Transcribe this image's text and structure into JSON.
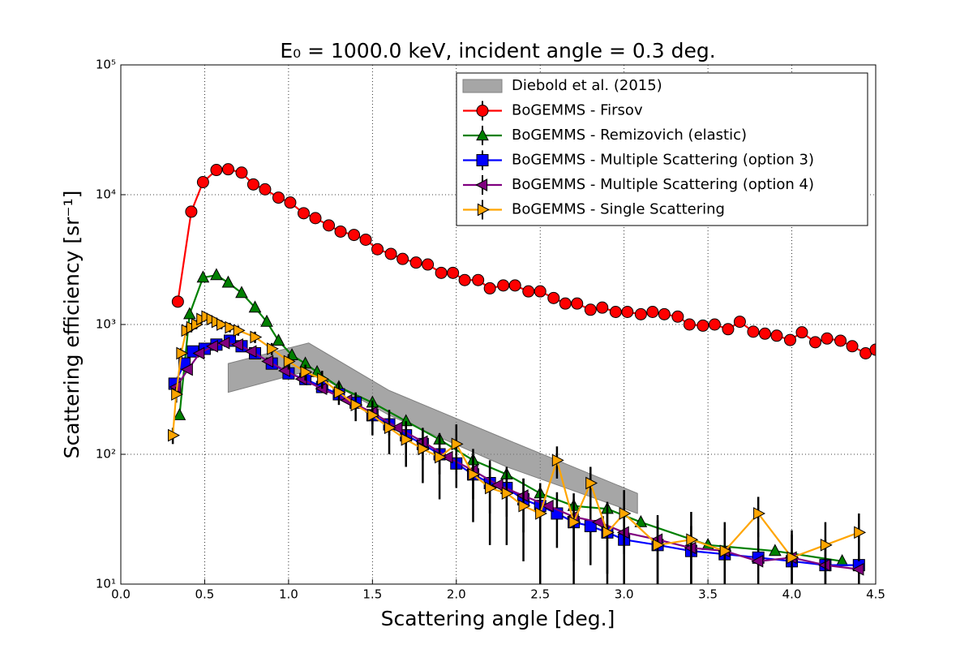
{
  "chart_data": {
    "type": "line",
    "title": "E₀ = 1000.0 keV, incident angle = 0.3 deg.",
    "xlabel": "Scattering angle [deg.]",
    "ylabel": "Scattering efficiency [sr⁻¹]",
    "xlim": [
      0,
      4.5
    ],
    "ylim": [
      10,
      100000
    ],
    "log_y": true,
    "grid": true,
    "legend": "upper right",
    "xticks": [
      {
        "value": 0,
        "label": "0.0"
      },
      0.5,
      {
        "value": 1,
        "label": "1.0"
      },
      1.5,
      {
        "value": 2,
        "label": "2.0"
      },
      2.5,
      {
        "value": 3,
        "label": "3.0"
      },
      3.5,
      {
        "value": 4,
        "label": "4.0"
      },
      4.5
    ],
    "yticks": [
      {
        "value": 10,
        "label": "10¹"
      },
      {
        "value": 100,
        "label": "10²"
      },
      {
        "value": 1000,
        "label": "10³"
      },
      {
        "value": 10000,
        "label": "10⁴"
      },
      {
        "value": 100000,
        "label": "10⁵"
      }
    ],
    "band": {
      "name": "Diebold et al. (2015)",
      "color": "#808080",
      "x": [
        0.64,
        1.12,
        1.6,
        2.3,
        3.08
      ],
      "upper": [
        500,
        720,
        310,
        130,
        50
      ],
      "lower": [
        300,
        440,
        200,
        80,
        35
      ]
    },
    "series": [
      {
        "name": "BoGEMMS - Firsov",
        "color": "#ff0000",
        "marker": "circle",
        "x": [
          0.34,
          0.42,
          0.49,
          0.57,
          0.64,
          0.72,
          0.79,
          0.86,
          0.94,
          1.01,
          1.09,
          1.16,
          1.24,
          1.31,
          1.39,
          1.46,
          1.53,
          1.61,
          1.68,
          1.76,
          1.83,
          1.91,
          1.98,
          2.05,
          2.13,
          2.2,
          2.28,
          2.35,
          2.43,
          2.5,
          2.58,
          2.65,
          2.72,
          2.8,
          2.87,
          2.95,
          3.02,
          3.1,
          3.17,
          3.24,
          3.32,
          3.39,
          3.47,
          3.54,
          3.62,
          3.69,
          3.77,
          3.84,
          3.91,
          3.99,
          4.06,
          4.14,
          4.21,
          4.29,
          4.36,
          4.44,
          4.5
        ],
        "values": [
          1500,
          7400,
          12500,
          15500,
          15700,
          14800,
          12000,
          11000,
          9500,
          8700,
          7200,
          6600,
          5800,
          5200,
          4900,
          4500,
          3800,
          3500,
          3200,
          3000,
          2900,
          2500,
          2500,
          2200,
          2200,
          1900,
          2000,
          2000,
          1800,
          1800,
          1600,
          1450,
          1450,
          1300,
          1350,
          1250,
          1250,
          1200,
          1250,
          1200,
          1150,
          1000,
          980,
          1000,
          920,
          1050,
          880,
          850,
          820,
          760,
          870,
          730,
          780,
          750,
          680,
          600,
          640
        ]
      },
      {
        "name": "BoGEMMS - Remizovich (elastic)",
        "color": "#008000",
        "marker": "triangle-up",
        "x": [
          0.35,
          0.41,
          0.49,
          0.57,
          0.64,
          0.72,
          0.8,
          0.87,
          0.94,
          1.02,
          1.1,
          1.17,
          1.3,
          1.5,
          1.7,
          1.9,
          2.1,
          2.3,
          2.5,
          2.7,
          2.9,
          3.1,
          3.5,
          3.9,
          4.3
        ],
        "values": [
          200,
          1200,
          2300,
          2400,
          2100,
          1750,
          1350,
          1050,
          750,
          580,
          500,
          430,
          330,
          250,
          180,
          130,
          90,
          70,
          50,
          40,
          38,
          30,
          20,
          18,
          15
        ]
      },
      {
        "name": "BoGEMMS - Multiple Scattering (option 3)",
        "color": "#0000ff",
        "marker": "square",
        "x": [
          0.32,
          0.38,
          0.43,
          0.5,
          0.57,
          0.65,
          0.72,
          0.8,
          0.9,
          1.0,
          1.1,
          1.2,
          1.3,
          1.4,
          1.5,
          1.6,
          1.7,
          1.8,
          1.9,
          2.0,
          2.1,
          2.2,
          2.3,
          2.4,
          2.5,
          2.6,
          2.7,
          2.8,
          2.9,
          3.0,
          3.2,
          3.4,
          3.6,
          3.8,
          4.0,
          4.2,
          4.4
        ],
        "values": [
          350,
          500,
          620,
          650,
          700,
          750,
          680,
          600,
          500,
          420,
          380,
          330,
          290,
          250,
          200,
          170,
          140,
          120,
          100,
          85,
          70,
          60,
          55,
          45,
          40,
          35,
          30,
          28,
          25,
          22,
          20,
          18,
          17,
          16,
          15,
          14,
          14
        ],
        "errors": [
          20,
          30,
          30,
          30,
          30,
          30,
          30,
          30,
          25,
          25,
          25,
          25,
          25,
          25,
          30,
          30,
          30,
          30,
          30,
          30,
          25,
          25,
          22,
          20,
          18,
          16,
          15,
          14,
          13,
          12,
          11,
          10,
          10,
          9,
          9,
          8,
          8
        ]
      },
      {
        "name": "BoGEMMS - Multiple Scattering (option 4)",
        "color": "#800080",
        "marker": "triangle-left",
        "x": [
          0.33,
          0.4,
          0.47,
          0.55,
          0.62,
          0.7,
          0.78,
          0.88,
          0.98,
          1.08,
          1.2,
          1.35,
          1.5,
          1.65,
          1.8,
          1.95,
          2.1,
          2.25,
          2.4,
          2.55,
          2.7,
          2.85,
          3.0,
          3.2,
          3.4,
          3.6,
          3.8,
          4.0,
          4.2,
          4.4
        ],
        "values": [
          330,
          450,
          600,
          680,
          720,
          700,
          620,
          520,
          440,
          380,
          320,
          260,
          210,
          160,
          125,
          95,
          75,
          58,
          48,
          40,
          33,
          30,
          25,
          22,
          19,
          18,
          15,
          16,
          14,
          13
        ]
      },
      {
        "name": "BoGEMMS - Single Scattering",
        "color": "#ffa500",
        "marker": "triangle-right",
        "x": [
          0.31,
          0.33,
          0.36,
          0.39,
          0.42,
          0.45,
          0.48,
          0.51,
          0.54,
          0.57,
          0.6,
          0.65,
          0.7,
          0.8,
          0.9,
          1.0,
          1.1,
          1.2,
          1.3,
          1.4,
          1.5,
          1.6,
          1.7,
          1.8,
          1.9,
          2.0,
          2.1,
          2.2,
          2.3,
          2.4,
          2.5,
          2.6,
          2.7,
          2.8,
          2.9,
          3.0,
          3.2,
          3.4,
          3.6,
          3.8,
          4.0,
          4.2,
          4.4
        ],
        "values": [
          140,
          290,
          600,
          900,
          950,
          1000,
          1100,
          1150,
          1100,
          1050,
          1000,
          950,
          900,
          800,
          650,
          520,
          430,
          380,
          300,
          240,
          200,
          160,
          130,
          110,
          95,
          120,
          70,
          55,
          50,
          40,
          35,
          90,
          30,
          60,
          25,
          35,
          20,
          22,
          18,
          35,
          16,
          20,
          25
        ],
        "errors": [
          20,
          40,
          60,
          80,
          80,
          80,
          80,
          80,
          80,
          80,
          80,
          80,
          80,
          80,
          70,
          70,
          60,
          60,
          60,
          60,
          60,
          60,
          50,
          50,
          50,
          50,
          40,
          35,
          30,
          25,
          25,
          25,
          20,
          20,
          18,
          18,
          14,
          14,
          12,
          12,
          10,
          10,
          10
        ]
      }
    ]
  }
}
